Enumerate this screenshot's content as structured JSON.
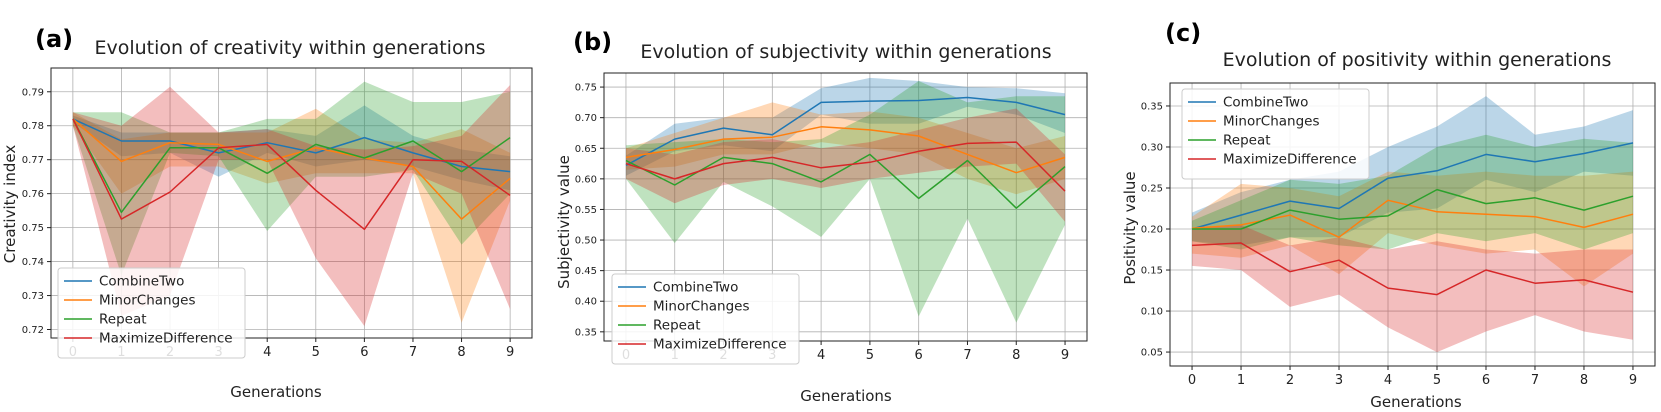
{
  "colors": {
    "CombineTwo": "#1f77b4",
    "MinorChanges": "#ff7f0e",
    "Repeat": "#2ca02c",
    "MaximizeDifference": "#d62728"
  },
  "chart_data": [
    {
      "type": "line",
      "panel": "(a)",
      "title": "Evolution of creativity within generations",
      "xlabel": "Generations",
      "ylabel": "Creativity index",
      "x": [
        0,
        1,
        2,
        3,
        4,
        5,
        6,
        7,
        8,
        9
      ],
      "xlim": [
        -0.45,
        9.45
      ],
      "ylim": [
        0.7175,
        0.797
      ],
      "yticks": [
        0.72,
        0.73,
        0.74,
        0.75,
        0.76,
        0.77,
        0.78,
        0.79
      ],
      "yticklabels": [
        "0.72",
        "0.73",
        "0.74",
        "0.75",
        "0.76",
        "0.77",
        "0.78",
        "0.79"
      ],
      "legend": "lower-left",
      "grid": true,
      "series": [
        {
          "name": "CombineTwo",
          "values": [
            0.782,
            0.7755,
            0.7755,
            0.772,
            0.775,
            0.772,
            0.7765,
            0.772,
            0.768,
            0.7665
          ],
          "lower": [
            0.781,
            0.771,
            0.772,
            0.765,
            0.772,
            0.768,
            0.77,
            0.768,
            0.764,
            0.761
          ],
          "upper": [
            0.783,
            0.778,
            0.778,
            0.778,
            0.779,
            0.777,
            0.786,
            0.777,
            0.773,
            0.771
          ]
        },
        {
          "name": "MinorChanges",
          "values": [
            0.782,
            0.7695,
            0.775,
            0.7745,
            0.7695,
            0.7735,
            0.7705,
            0.768,
            0.7525,
            0.7645
          ],
          "lower": [
            0.78,
            0.76,
            0.768,
            0.768,
            0.763,
            0.766,
            0.766,
            0.766,
            0.722,
            0.758
          ],
          "upper": [
            0.784,
            0.776,
            0.778,
            0.778,
            0.778,
            0.785,
            0.776,
            0.775,
            0.779,
            0.772
          ]
        },
        {
          "name": "Repeat",
          "values": [
            0.782,
            0.7545,
            0.7735,
            0.7735,
            0.766,
            0.7745,
            0.7705,
            0.7755,
            0.7665,
            0.7765
          ],
          "lower": [
            0.78,
            0.736,
            0.772,
            0.771,
            0.749,
            0.765,
            0.765,
            0.767,
            0.745,
            0.76
          ],
          "upper": [
            0.784,
            0.784,
            0.778,
            0.778,
            0.782,
            0.782,
            0.793,
            0.787,
            0.787,
            0.79
          ]
        },
        {
          "name": "MaximizeDifference",
          "values": [
            0.782,
            0.7525,
            0.7605,
            0.7735,
            0.7745,
            0.761,
            0.7495,
            0.77,
            0.7695,
            0.7595
          ],
          "lower": [
            0.78,
            0.724,
            0.73,
            0.77,
            0.77,
            0.741,
            0.721,
            0.766,
            0.76,
            0.726
          ],
          "upper": [
            0.784,
            0.78,
            0.7915,
            0.778,
            0.779,
            0.774,
            0.773,
            0.774,
            0.777,
            0.792
          ]
        }
      ]
    },
    {
      "type": "line",
      "panel": "(b)",
      "title": "Evolution of subjectivity within generations",
      "xlabel": "Generations",
      "ylabel": "Subjectivity value",
      "x": [
        0,
        1,
        2,
        3,
        4,
        5,
        6,
        7,
        8,
        9
      ],
      "xlim": [
        -0.45,
        9.45
      ],
      "ylim": [
        0.335,
        0.773
      ],
      "yticks": [
        0.35,
        0.4,
        0.45,
        0.5,
        0.55,
        0.6,
        0.65,
        0.7,
        0.75
      ],
      "yticklabels": [
        "0.35",
        "0.40",
        "0.45",
        "0.50",
        "0.55",
        "0.60",
        "0.65",
        "0.70",
        "0.75"
      ],
      "legend": "lower-left",
      "grid": true,
      "series": [
        {
          "name": "CombineTwo",
          "values": [
            0.622,
            0.665,
            0.683,
            0.672,
            0.725,
            0.727,
            0.728,
            0.733,
            0.725,
            0.705
          ],
          "lower": [
            0.605,
            0.645,
            0.655,
            0.645,
            0.705,
            0.69,
            0.69,
            0.718,
            0.705,
            0.675
          ],
          "upper": [
            0.638,
            0.69,
            0.7,
            0.7,
            0.748,
            0.765,
            0.76,
            0.75,
            0.748,
            0.74
          ]
        },
        {
          "name": "MinorChanges",
          "values": [
            0.635,
            0.648,
            0.665,
            0.668,
            0.685,
            0.68,
            0.67,
            0.64,
            0.61,
            0.635
          ],
          "lower": [
            0.615,
            0.62,
            0.64,
            0.64,
            0.66,
            0.65,
            0.64,
            0.6,
            0.575,
            0.6
          ],
          "upper": [
            0.65,
            0.675,
            0.7,
            0.725,
            0.705,
            0.71,
            0.7,
            0.675,
            0.65,
            0.67
          ]
        },
        {
          "name": "Repeat",
          "values": [
            0.63,
            0.59,
            0.635,
            0.625,
            0.595,
            0.64,
            0.568,
            0.63,
            0.552,
            0.62
          ],
          "lower": [
            0.6,
            0.495,
            0.595,
            0.555,
            0.505,
            0.6,
            0.375,
            0.535,
            0.365,
            0.525
          ],
          "upper": [
            0.655,
            0.66,
            0.665,
            0.66,
            0.665,
            0.705,
            0.76,
            0.725,
            0.735,
            0.735
          ]
        },
        {
          "name": "MaximizeDifference",
          "values": [
            0.625,
            0.6,
            0.625,
            0.635,
            0.618,
            0.627,
            0.645,
            0.658,
            0.66,
            0.58
          ],
          "lower": [
            0.6,
            0.56,
            0.59,
            0.6,
            0.585,
            0.6,
            0.61,
            0.62,
            0.625,
            0.53
          ],
          "upper": [
            0.65,
            0.64,
            0.66,
            0.665,
            0.65,
            0.66,
            0.68,
            0.7,
            0.715,
            0.64
          ]
        }
      ]
    },
    {
      "type": "line",
      "panel": "(c)",
      "title": "Evolution of positivity within generations",
      "xlabel": "Generations",
      "ylabel": "Positivity value",
      "x": [
        0,
        1,
        2,
        3,
        4,
        5,
        6,
        7,
        8,
        9
      ],
      "xlim": [
        -0.45,
        9.45
      ],
      "ylim": [
        0.033,
        0.378
      ],
      "yticks": [
        0.05,
        0.1,
        0.15,
        0.2,
        0.25,
        0.3,
        0.35
      ],
      "yticklabels": [
        "0.05",
        "0.10",
        "0.15",
        "0.20",
        "0.25",
        "0.30",
        "0.35"
      ],
      "legend": "top-left",
      "grid": true,
      "series": [
        {
          "name": "CombineTwo",
          "values": [
            0.2,
            0.217,
            0.234,
            0.225,
            0.262,
            0.271,
            0.291,
            0.282,
            0.292,
            0.305
          ],
          "lower": [
            0.185,
            0.18,
            0.19,
            0.19,
            0.22,
            0.225,
            0.26,
            0.245,
            0.27,
            0.265
          ],
          "upper": [
            0.22,
            0.245,
            0.26,
            0.27,
            0.3,
            0.325,
            0.362,
            0.315,
            0.325,
            0.345
          ]
        },
        {
          "name": "MinorChanges",
          "values": [
            0.201,
            0.205,
            0.217,
            0.19,
            0.235,
            0.221,
            0.218,
            0.215,
            0.202,
            0.218
          ],
          "lower": [
            0.17,
            0.165,
            0.18,
            0.145,
            0.195,
            0.18,
            0.17,
            0.175,
            0.13,
            0.17
          ],
          "upper": [
            0.215,
            0.255,
            0.25,
            0.24,
            0.27,
            0.265,
            0.27,
            0.265,
            0.265,
            0.27
          ]
        },
        {
          "name": "Repeat",
          "values": [
            0.2,
            0.2,
            0.223,
            0.212,
            0.216,
            0.248,
            0.231,
            0.238,
            0.223,
            0.24
          ],
          "lower": [
            0.185,
            0.175,
            0.19,
            0.18,
            0.175,
            0.195,
            0.185,
            0.195,
            0.175,
            0.195
          ],
          "upper": [
            0.21,
            0.235,
            0.26,
            0.255,
            0.265,
            0.3,
            0.315,
            0.3,
            0.31,
            0.305
          ]
        },
        {
          "name": "MaximizeDifference",
          "values": [
            0.18,
            0.183,
            0.148,
            0.162,
            0.128,
            0.12,
            0.15,
            0.134,
            0.138,
            0.123
          ],
          "lower": [
            0.155,
            0.15,
            0.105,
            0.12,
            0.08,
            0.05,
            0.075,
            0.095,
            0.075,
            0.065
          ],
          "upper": [
            0.2,
            0.205,
            0.18,
            0.19,
            0.175,
            0.185,
            0.175,
            0.17,
            0.175,
            0.175
          ]
        }
      ]
    }
  ]
}
